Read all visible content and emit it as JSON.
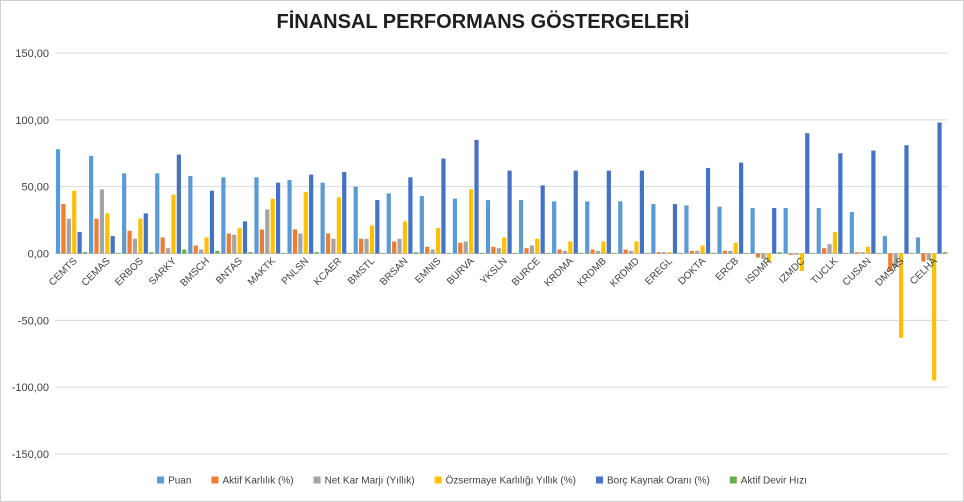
{
  "chart_data": {
    "type": "bar",
    "title": "FİNANSAL PERFORMANS GÖSTERGELERİ",
    "xlabel": "",
    "ylabel": "",
    "ylim": [
      -150,
      150
    ],
    "yticks": [
      "-150,00",
      "-100,00",
      "-50,00",
      "0,00",
      "50,00",
      "100,00",
      "150,00"
    ],
    "grid": true,
    "legend_position": "bottom",
    "categories": [
      "CEMTS",
      "CEMAS",
      "ERBOS",
      "SARKY",
      "BMSCH",
      "BNTAS",
      "MAKTK",
      "PNLSN",
      "KCAER",
      "BMSTL",
      "BRSAN",
      "EMNIS",
      "BURVA",
      "YKSLN",
      "BURCE",
      "KRDMA",
      "KRDMB",
      "KRDMD",
      "EREGL",
      "DOKTA",
      "ERCB",
      "ISDMR",
      "IZMDC",
      "TUCLK",
      "CUSAN",
      "DMSAS",
      "CELHA"
    ],
    "series": [
      {
        "name": "Puan",
        "color": "#5b9bd5",
        "values": [
          78,
          73,
          60,
          60,
          58,
          57,
          57,
          55,
          53,
          50,
          45,
          43,
          41,
          40,
          40,
          39,
          39,
          39,
          37,
          36,
          35,
          34,
          34,
          34,
          31,
          13,
          12
        ]
      },
      {
        "name": "Aktif Karlılık (%)",
        "color": "#ed7d31",
        "values": [
          37,
          26,
          17,
          12,
          6,
          15,
          18,
          18,
          15,
          11,
          9,
          5,
          8,
          5,
          4,
          3,
          3,
          3,
          1,
          2,
          2,
          -3,
          -1,
          4,
          1,
          -13,
          -6
        ]
      },
      {
        "name": "Net Kar Marjı (Yıllık)",
        "color": "#a5a5a5",
        "values": [
          26,
          48,
          11,
          4,
          3,
          14,
          33,
          15,
          11,
          11,
          11,
          3,
          9,
          4,
          6,
          2,
          2,
          2,
          1,
          2,
          2,
          -4,
          -1,
          7,
          1,
          -10,
          -5
        ]
      },
      {
        "name": "Özsermaye Karlılığı Yıllık (%)",
        "color": "#ffc000",
        "values": [
          47,
          30,
          26,
          44,
          12,
          19,
          41,
          46,
          42,
          21,
          24,
          19,
          48,
          12,
          11,
          9,
          9,
          9,
          1,
          6,
          8,
          -6,
          -13,
          16,
          5,
          -63,
          -95
        ]
      },
      {
        "name": "Borç Kaynak Oranı (%)",
        "color": "#4472c4",
        "values": [
          16,
          13,
          30,
          74,
          47,
          24,
          53,
          59,
          61,
          40,
          57,
          71,
          85,
          62,
          51,
          62,
          62,
          62,
          37,
          64,
          68,
          34,
          90,
          75,
          77,
          81,
          98
        ]
      },
      {
        "name": "Aktif Devir Hızı",
        "color": "#70ad47",
        "values": [
          1,
          0.5,
          1,
          3,
          2,
          1,
          0.5,
          1,
          0.5,
          0.5,
          1,
          0.5,
          0.5,
          0.5,
          0.5,
          0.5,
          0.5,
          0.5,
          0.5,
          0.5,
          0.5,
          1,
          0.5,
          0.5,
          0.5,
          0.5,
          1
        ]
      }
    ]
  }
}
